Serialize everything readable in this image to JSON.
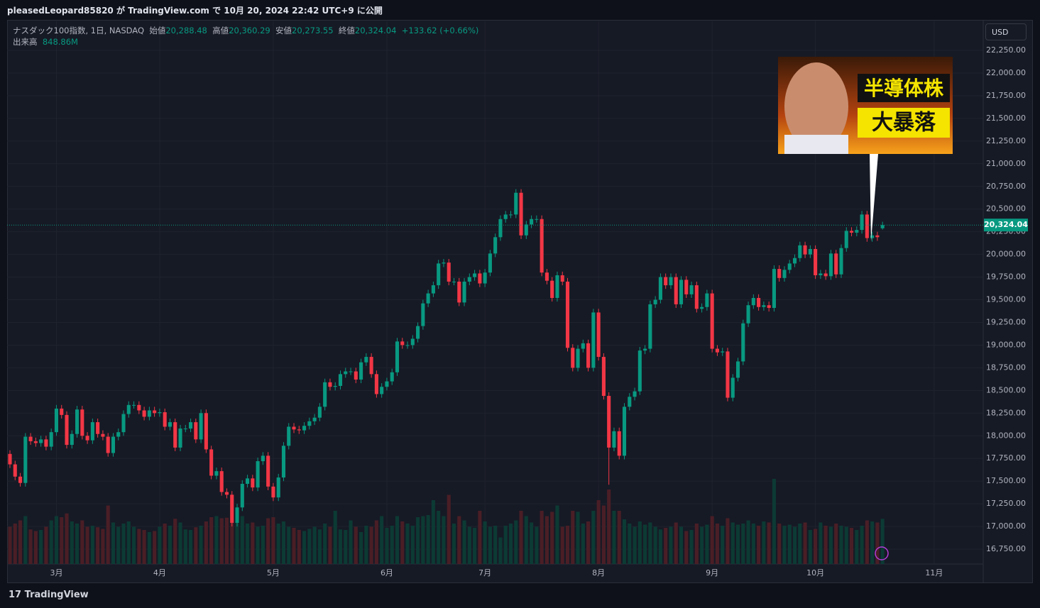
{
  "header": "pleasedLeopard85820 が TradingView.com で 10月 20, 2024 22:42 UTC+9 に公開",
  "footer_logo": "TradingView",
  "currency_button": "USD",
  "thumbnail": {
    "line1": "半導体株",
    "line2": "大暴落"
  },
  "chart_data": {
    "type": "candlestick",
    "legend": {
      "symbol": "ナスダック100指数, 1日, NASDAQ",
      "fields": [
        {
          "label": "始値",
          "value": "20,288.48"
        },
        {
          "label": "高値",
          "value": "20,360.29"
        },
        {
          "label": "安値",
          "value": "20,273.55"
        },
        {
          "label": "終値",
          "value": "20,324.04"
        }
      ],
      "change": "+133.62 (+0.66%)",
      "volume_label": "出来高",
      "volume_value": "848.86M"
    },
    "last_price_label": "20,324.04",
    "up_color": "#089981",
    "down_color": "#f23645",
    "volume_up_color": "#0c3a34",
    "volume_down_color": "#4a1e26",
    "grid": true,
    "xlim": [
      -0.55,
      188.5
    ],
    "xticks": [
      {
        "value": 9,
        "label": "3月"
      },
      {
        "value": 29,
        "label": "4月"
      },
      {
        "value": 51,
        "label": "5月"
      },
      {
        "value": 73,
        "label": "6月"
      },
      {
        "value": 92,
        "label": "7月"
      },
      {
        "value": 114,
        "label": "8月"
      },
      {
        "value": 136,
        "label": "9月"
      },
      {
        "value": 156,
        "label": "10月"
      },
      {
        "value": 179,
        "label": "11月"
      }
    ],
    "ylim": [
      16586,
      22571
    ],
    "yticks": [
      {
        "value": 16750,
        "label": "16,750.00"
      },
      {
        "value": 17000,
        "label": "17,000.00"
      },
      {
        "value": 17250,
        "label": "17,250.00"
      },
      {
        "value": 17500,
        "label": "17,500.00"
      },
      {
        "value": 17750,
        "label": "17,750.00"
      },
      {
        "value": 18000,
        "label": "18,000.00"
      },
      {
        "value": 18250,
        "label": "18,250.00"
      },
      {
        "value": 18500,
        "label": "18,500.00"
      },
      {
        "value": 18750,
        "label": "18,750.00"
      },
      {
        "value": 19000,
        "label": "19,000.00"
      },
      {
        "value": 19250,
        "label": "19,250.00"
      },
      {
        "value": 19500,
        "label": "19,500.00"
      },
      {
        "value": 19750,
        "label": "19,750.00"
      },
      {
        "value": 20000,
        "label": "20,000.00"
      },
      {
        "value": 20250,
        "label": "20,250.00"
      },
      {
        "value": 20500,
        "label": "20,500.00"
      },
      {
        "value": 20750,
        "label": "20,750.00"
      },
      {
        "value": 21000,
        "label": "21,000.00"
      },
      {
        "value": 21250,
        "label": "21,250.00"
      },
      {
        "value": 21500,
        "label": "21,500.00"
      },
      {
        "value": 21750,
        "label": "21,750.00"
      },
      {
        "value": 22000,
        "label": "22,000.00"
      },
      {
        "value": 22250,
        "label": "22,250.00"
      }
    ],
    "volume_ylim": [
      0,
      2200
    ],
    "open": [
      17800,
      17685,
      17550,
      17480,
      17990,
      17940,
      17920,
      17960,
      17880,
      18040,
      18300,
      18230,
      17900,
      18020,
      18290,
      18000,
      17950,
      18150,
      18020,
      17990,
      17810,
      17990,
      18040,
      18240,
      18340,
      18340,
      18280,
      18210,
      18280,
      18250,
      18260,
      18100,
      18150,
      17870,
      18080,
      18080,
      18150,
      17960,
      18250,
      17850,
      17560,
      17610,
      17380,
      17350,
      17040,
      17210,
      17470,
      17530,
      17430,
      17720,
      17780,
      17440,
      17320,
      17540,
      17890,
      18100,
      18070,
      18060,
      18110,
      18160,
      18200,
      18320,
      18590,
      18540,
      18550,
      18680,
      18710,
      18710,
      18620,
      18810,
      18870,
      18680,
      18460,
      18540,
      18600,
      18700,
      19040,
      19000,
      19000,
      19070,
      19210,
      19460,
      19570,
      19660,
      19900,
      19910,
      19700,
      19700,
      19470,
      19700,
      19750,
      19790,
      19680,
      19800,
      20010,
      20190,
      20390,
      20440,
      20440,
      20680,
      20210,
      20330,
      20390,
      20390,
      19800,
      19710,
      19520,
      19770,
      19700,
      18970,
      18750,
      18960,
      19020,
      18750,
      19360,
      18870,
      18440,
      17870,
      18050,
      17780,
      18320,
      18430,
      18490,
      18940,
      18960,
      19450,
      19500,
      19750,
      19660,
      19750,
      19450,
      19720,
      19560,
      19660,
      19400,
      19420,
      19570,
      18960,
      18920,
      18930,
      18420,
      18640,
      18820,
      19240,
      19440,
      19520,
      19420,
      19440,
      19410,
      19840,
      19740,
      19830,
      19900,
      19960,
      20100,
      20000,
      20060,
      19770,
      19790,
      19760,
      20010,
      19780,
      20070,
      20260,
      20240,
      20270,
      20440,
      20180,
      20210,
      20288.48
    ],
    "high": [
      17840,
      17725,
      17590,
      18030,
      18030,
      17980,
      18000,
      18000,
      18080,
      18340,
      18340,
      18270,
      18060,
      18330,
      18330,
      18040,
      18190,
      18190,
      18060,
      18030,
      18030,
      18080,
      18280,
      18380,
      18380,
      18380,
      18320,
      18320,
      18320,
      18300,
      18300,
      18190,
      18190,
      18120,
      18120,
      18190,
      18190,
      18290,
      18290,
      17890,
      17650,
      17650,
      17420,
      17390,
      17250,
      17510,
      17570,
      17570,
      17760,
      17820,
      17820,
      17480,
      17580,
      17930,
      18140,
      18140,
      18110,
      18150,
      18200,
      18240,
      18360,
      18630,
      18630,
      18590,
      18720,
      18750,
      18750,
      18750,
      18850,
      18910,
      18910,
      18720,
      18580,
      18640,
      18740,
      19080,
      19080,
      19040,
      19110,
      19250,
      19500,
      19610,
      19700,
      19940,
      19950,
      19950,
      19740,
      19740,
      19740,
      19790,
      19830,
      19830,
      19840,
      20050,
      20230,
      20430,
      20480,
      20480,
      20720,
      20720,
      20370,
      20430,
      20430,
      20430,
      19840,
      19750,
      19810,
      19810,
      19740,
      19010,
      19000,
      19060,
      19060,
      19400,
      19400,
      18910,
      18480,
      18090,
      18090,
      18360,
      18470,
      18530,
      18980,
      19000,
      19490,
      19540,
      19790,
      19790,
      19790,
      19790,
      19760,
      19760,
      19700,
      19700,
      19460,
      19610,
      19610,
      19000,
      18970,
      18970,
      18680,
      18860,
      19280,
      19480,
      19560,
      19560,
      19480,
      19480,
      19880,
      19880,
      19870,
      19940,
      20000,
      20140,
      20140,
      20100,
      20100,
      19830,
      19830,
      20050,
      20050,
      20110,
      20300,
      20300,
      20310,
      20480,
      20480,
      20250,
      20250,
      20360.29
    ],
    "low": [
      17645,
      17510,
      17440,
      17440,
      17900,
      17880,
      17880,
      17840,
      17840,
      18000,
      18190,
      17860,
      17860,
      17980,
      17960,
      17910,
      17910,
      17980,
      17950,
      17770,
      17770,
      17950,
      18000,
      18200,
      18300,
      18240,
      18170,
      18170,
      18210,
      18210,
      18060,
      18060,
      17830,
      17830,
      18040,
      18040,
      17920,
      17920,
      17810,
      17520,
      17520,
      17340,
      17310,
      17000,
      17000,
      17170,
      17430,
      17390,
      17390,
      17680,
      17400,
      17280,
      17280,
      17500,
      17850,
      18030,
      18020,
      18020,
      18070,
      18120,
      18160,
      18280,
      18500,
      18500,
      18510,
      18640,
      18670,
      18580,
      18580,
      18770,
      18640,
      18420,
      18420,
      18500,
      18560,
      18660,
      18960,
      18960,
      18960,
      19030,
      19170,
      19420,
      19530,
      19620,
      19860,
      19660,
      19660,
      19430,
      19430,
      19660,
      19710,
      19640,
      19640,
      19760,
      19970,
      20150,
      20350,
      20400,
      20400,
      20170,
      20170,
      20290,
      20350,
      19760,
      19670,
      19480,
      19480,
      19660,
      18930,
      18710,
      18710,
      18920,
      18710,
      18710,
      18830,
      18400,
      17460,
      17830,
      17740,
      17740,
      18280,
      18390,
      18450,
      18900,
      18920,
      19410,
      19460,
      19620,
      19620,
      19410,
      19410,
      19520,
      19520,
      19360,
      19360,
      19380,
      18920,
      18880,
      18880,
      18380,
      18380,
      18600,
      18780,
      19200,
      19400,
      19380,
      19380,
      19370,
      19370,
      19700,
      19700,
      19790,
      19860,
      19920,
      19960,
      19960,
      19730,
      19730,
      19720,
      19720,
      19740,
      19740,
      20030,
      20200,
      20200,
      20230,
      20140,
      20140,
      20150,
      20273.55
    ],
    "close": [
      17685,
      17550,
      17480,
      17990,
      17940,
      17920,
      17960,
      17880,
      18040,
      18300,
      18230,
      17900,
      18020,
      18290,
      18000,
      17950,
      18150,
      18020,
      17990,
      17810,
      17990,
      18040,
      18240,
      18340,
      18340,
      18280,
      18210,
      18280,
      18250,
      18260,
      18100,
      18150,
      17870,
      18080,
      18080,
      18150,
      17960,
      18250,
      17850,
      17560,
      17610,
      17380,
      17350,
      17040,
      17210,
      17470,
      17530,
      17430,
      17720,
      17780,
      17440,
      17320,
      17540,
      17890,
      18100,
      18070,
      18060,
      18110,
      18160,
      18200,
      18320,
      18590,
      18540,
      18550,
      18680,
      18710,
      18710,
      18620,
      18810,
      18870,
      18680,
      18460,
      18540,
      18600,
      18700,
      19040,
      19000,
      19000,
      19070,
      19210,
      19460,
      19570,
      19660,
      19900,
      19910,
      19700,
      19700,
      19470,
      19700,
      19750,
      19790,
      19680,
      19800,
      20010,
      20190,
      20390,
      20440,
      20440,
      20680,
      20210,
      20330,
      20390,
      20390,
      19800,
      19710,
      19520,
      19770,
      19700,
      18970,
      18750,
      18960,
      19020,
      18750,
      19360,
      18870,
      18440,
      17870,
      18050,
      17780,
      18320,
      18430,
      18490,
      18940,
      18960,
      19450,
      19500,
      19750,
      19660,
      19750,
      19450,
      19720,
      19560,
      19660,
      19400,
      19420,
      19570,
      18960,
      18920,
      18930,
      18420,
      18640,
      18820,
      19240,
      19440,
      19520,
      19420,
      19440,
      19410,
      19840,
      19740,
      19830,
      19900,
      19960,
      20100,
      20000,
      20060,
      19770,
      19790,
      19760,
      20010,
      19780,
      20070,
      20260,
      20240,
      20270,
      20440,
      20180,
      20210,
      20190,
      20324.04
    ],
    "volume": [
      700,
      760,
      820,
      900,
      650,
      620,
      640,
      700,
      820,
      900,
      880,
      950,
      800,
      760,
      820,
      700,
      720,
      690,
      660,
      1100,
      780,
      700,
      760,
      800,
      700,
      660,
      640,
      600,
      620,
      700,
      760,
      720,
      850,
      780,
      650,
      640,
      690,
      720,
      800,
      880,
      900,
      860,
      870,
      1300,
      820,
      900,
      760,
      780,
      700,
      720,
      860,
      880,
      760,
      800,
      700,
      680,
      640,
      620,
      660,
      700,
      650,
      760,
      700,
      1000,
      650,
      640,
      820,
      700,
      600,
      720,
      700,
      820,
      900,
      680,
      720,
      900,
      800,
      760,
      720,
      880,
      900,
      920,
      1200,
      1000,
      900,
      1300,
      760,
      900,
      820,
      700,
      680,
      1000,
      800,
      700,
      720,
      500,
      720,
      760,
      820,
      1000,
      900,
      780,
      700,
      1000,
      900,
      980,
      1100,
      700,
      720,
      1000,
      980,
      760,
      800,
      1000,
      1200,
      1100,
      1400,
      1000,
      1000,
      840,
      760,
      700,
      800,
      740,
      780,
      700,
      650,
      680,
      700,
      780,
      700,
      620,
      640,
      760,
      700,
      740,
      900,
      760,
      720,
      860,
      780,
      740,
      760,
      820,
      760,
      720,
      800,
      780,
      1600,
      760,
      720,
      740,
      700,
      760,
      780,
      640,
      660,
      780,
      720,
      700,
      760,
      720,
      700,
      680,
      640,
      720,
      820,
      800,
      780,
      848.86
    ]
  }
}
